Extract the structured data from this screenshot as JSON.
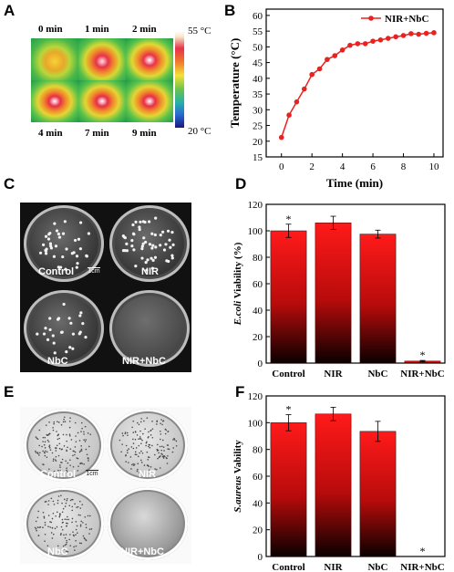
{
  "panel_letters": {
    "a": "A",
    "b": "B",
    "c": "C",
    "d": "D",
    "e": "E",
    "f": "F"
  },
  "thermal": {
    "times_top": [
      "0 min",
      "1 min",
      "2 min"
    ],
    "times_bottom": [
      "4 min",
      "7 min",
      "9 min"
    ],
    "scale_max": "55 °C",
    "scale_min": "20 °C"
  },
  "colony_c": {
    "labels": [
      "Control",
      "NIR",
      "NbC",
      "NIR+NbC"
    ],
    "scale_label": "1cm"
  },
  "colony_e": {
    "labels": [
      "Control",
      "NIR",
      "NbC",
      "NIR+NbC"
    ],
    "scale_label": "1cm"
  },
  "chart_data": [
    {
      "type": "line",
      "panel": "B",
      "xlabel": "Time (min)",
      "ylabel": "Temperature (°C)",
      "xlim": [
        -1,
        10.6
      ],
      "ylim": [
        15,
        62
      ],
      "xticks": [
        0,
        2,
        4,
        6,
        8,
        10
      ],
      "yticks": [
        15,
        20,
        25,
        30,
        35,
        40,
        45,
        50,
        55,
        60
      ],
      "legend": "top-right",
      "color": "#e8231f",
      "series": [
        {
          "name": "NIR+NbC",
          "x": [
            0,
            0.5,
            1,
            1.5,
            2,
            2.5,
            3,
            3.5,
            4,
            4.5,
            5,
            5.5,
            6,
            6.5,
            7,
            7.5,
            8,
            8.5,
            9,
            9.5,
            10
          ],
          "y": [
            21.2,
            28.3,
            32.5,
            36.6,
            41.2,
            43.0,
            46.0,
            47.2,
            49.0,
            50.5,
            51.0,
            51.0,
            51.8,
            52.2,
            52.7,
            53.2,
            53.6,
            54.2,
            54.0,
            54.3,
            54.5
          ]
        }
      ]
    },
    {
      "type": "bar",
      "panel": "D",
      "categories": [
        "Control",
        "NIR",
        "NbC",
        "NIR+NbC"
      ],
      "values": [
        100,
        106,
        97.5,
        1.5
      ],
      "errors": [
        5,
        5,
        3,
        0.5
      ],
      "annotations": [
        "*",
        "",
        "",
        "*"
      ],
      "ylabel_italic": "E.coli",
      "ylabel_rest": " Viability (%)",
      "ylim": [
        0,
        120
      ],
      "yticks": [
        0,
        20,
        40,
        60,
        80,
        100,
        120
      ]
    },
    {
      "type": "bar",
      "panel": "F",
      "categories": [
        "Control",
        "NIR",
        "NbC",
        "NIR+NbC"
      ],
      "values": [
        100,
        106.5,
        93.5,
        0
      ],
      "errors": [
        6,
        5,
        7.5,
        0
      ],
      "annotations": [
        "*",
        "",
        "",
        "*"
      ],
      "ylabel_italic": "S.aureus",
      "ylabel_rest": " Vability",
      "ylim": [
        0,
        120
      ],
      "yticks": [
        0,
        20,
        40,
        60,
        80,
        100,
        120
      ]
    }
  ]
}
